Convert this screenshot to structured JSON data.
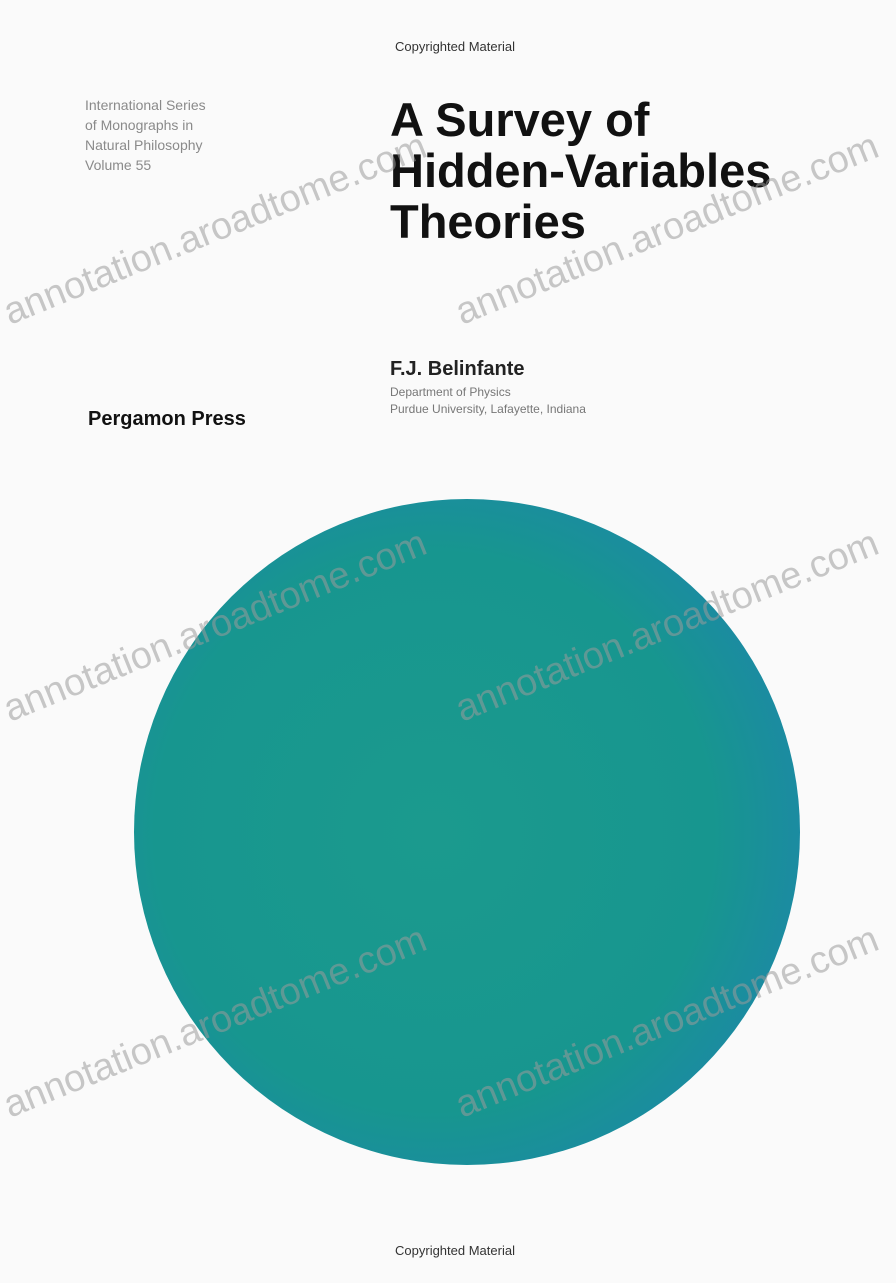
{
  "header": {
    "copyright": "Copyrighted Material"
  },
  "series": [
    "International Series",
    "of Monographs in",
    "Natural Philosophy",
    "Volume 55"
  ],
  "title": [
    "A Survey of",
    "Hidden-Variables",
    "Theories"
  ],
  "author": {
    "name": "F.J. Belinfante",
    "department": "Department of Physics",
    "affiliation": "Purdue University, Lafayette, Indiana"
  },
  "publisher": "Pergamon Press",
  "footer": {
    "copyright": "Copyrighted Material"
  },
  "watermark": "annotation.aroadtome.com"
}
